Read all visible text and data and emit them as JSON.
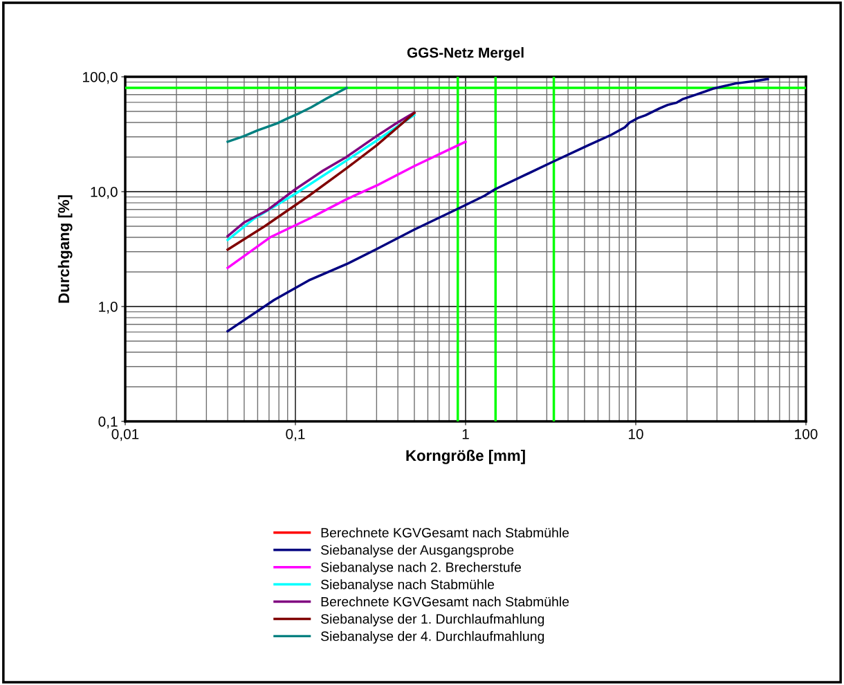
{
  "chart_data": {
    "type": "line",
    "title": "GGS-Netz Mergel",
    "xlabel": "Korngröße [mm]",
    "ylabel": "Durchgang [%]",
    "log": "xy",
    "grid": true,
    "legend": "bottom",
    "line_style": "solid",
    "marker": "none",
    "xlim": [
      0.01,
      100
    ],
    "xticks": [
      {
        "value": 0.01,
        "label": "0,01"
      },
      {
        "value": 0.1,
        "label": "0,1"
      },
      1,
      10,
      100
    ],
    "ylim": [
      0.1,
      100
    ],
    "yticks": [
      {
        "value": 0.1,
        "label": "0,1"
      },
      {
        "value": 1,
        "label": "1,0"
      },
      {
        "value": 10,
        "label": "10,0"
      },
      {
        "value": 100,
        "label": "100,0"
      }
    ],
    "series": [
      {
        "name": "Berechnete KGVGesamt nach Stabmühle",
        "color": "#ff0000"
      },
      {
        "name": "Siebanalyse der Ausgangsprobe",
        "color": "#000080",
        "x": [
          0.04,
          0.075,
          0.12,
          0.2,
          0.3,
          0.5,
          0.9,
          1.29,
          1.49,
          3.18,
          5.24,
          7.16,
          8.63,
          9.18,
          10.4,
          11.4,
          13.8,
          15.4,
          17.4,
          18.8,
          22.7,
          28.3,
          38.6,
          49.5,
          59.7
        ],
        "values": [
          0.61,
          1.14,
          1.69,
          2.34,
          3.16,
          4.68,
          7.1,
          9.2,
          10.5,
          17.9,
          25.3,
          31.2,
          36.3,
          39.9,
          44.1,
          46.2,
          53.1,
          56.9,
          59.6,
          63.8,
          70.0,
          78.7,
          87.5,
          91.6,
          95.5
        ]
      },
      {
        "name": "Siebanalyse nach 2. Brecherstufe",
        "color": "#ff00ff",
        "x": [
          0.04,
          0.071,
          0.12,
          0.2,
          0.3,
          0.5,
          0.9,
          1.0
        ],
        "values": [
          2.17,
          4.0,
          5.8,
          8.6,
          11.3,
          16.7,
          25.3,
          27.2
        ]
      },
      {
        "name": "Siebanalyse nach Stabmühle",
        "color": "#00ffff",
        "x": [
          0.04,
          0.057,
          0.1,
          0.2,
          0.3,
          0.5
        ],
        "values": [
          3.8,
          5.8,
          9.6,
          18.7,
          27.8,
          46.6
        ]
      },
      {
        "name": "Berechnete KGVGesamt nach Stabmühle",
        "color": "#800080",
        "x": [
          0.04,
          0.05,
          0.0685,
          0.1,
          0.145,
          0.2,
          0.3,
          0.4,
          0.5
        ],
        "values": [
          4.1,
          5.4,
          6.9,
          10.5,
          15.2,
          20.1,
          30.5,
          40.2,
          48.8
        ]
      },
      {
        "name": "Siebanalyse der 1. Durchlaufmahlung",
        "color": "#800000",
        "x": [
          0.04,
          0.066,
          0.12,
          0.2,
          0.3,
          0.5
        ],
        "values": [
          3.13,
          5.0,
          9.2,
          16.0,
          25.3,
          48.4
        ]
      },
      {
        "name": "Siebanalyse der 4. Durchlaufmahlung",
        "color": "#008080",
        "x": [
          0.04,
          0.05,
          0.06,
          0.078,
          0.089,
          0.106,
          0.124,
          0.154,
          0.2
        ],
        "values": [
          27.2,
          30.5,
          34.2,
          39.3,
          43.1,
          48.4,
          54.3,
          65.3,
          80.0
        ]
      }
    ],
    "ref_lines": [
      {
        "axis": "y",
        "value": 80,
        "color": "#00ff00"
      },
      {
        "axis": "x",
        "value": 0.9,
        "color": "#00ff00"
      },
      {
        "axis": "x",
        "value": 1.5,
        "color": "#00ff00"
      },
      {
        "axis": "x",
        "value": 3.3,
        "color": "#00ff00"
      }
    ]
  }
}
